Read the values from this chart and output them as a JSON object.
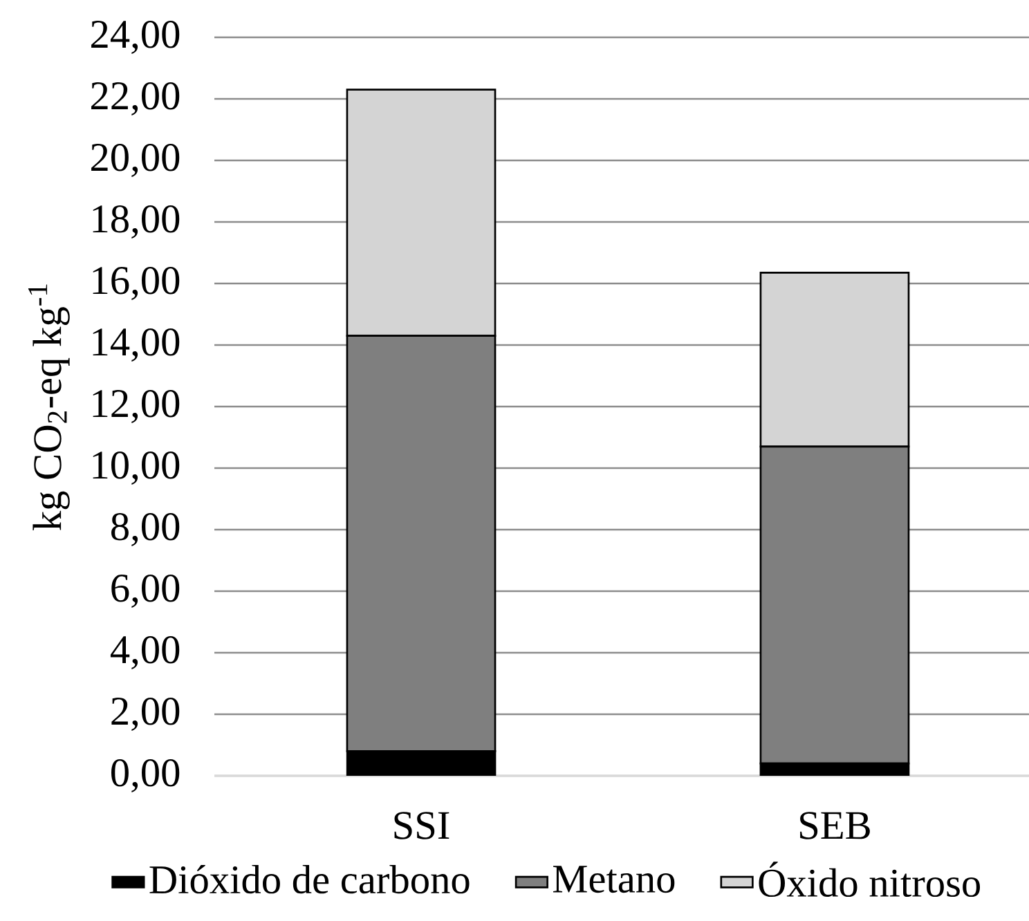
{
  "chart_data": {
    "type": "bar",
    "ylabel": "kg CO$_{2}$-eq kg$^{-1}$",
    "categories": [
      "SSI",
      "SEB"
    ],
    "series": [
      {
        "name": "Dióxido de carbono",
        "color": "#000000",
        "values": [
          0.8,
          0.4
        ]
      },
      {
        "name": "Metano",
        "color": "#7f7f7f",
        "values": [
          13.5,
          10.3
        ]
      },
      {
        "name": "Óxido nitroso",
        "color": "#d4d4d4",
        "values": [
          8.0,
          5.65
        ]
      }
    ],
    "stacked": true,
    "ylim": [
      0,
      24
    ],
    "yticks": [
      {
        "value": 0,
        "label": "0,00"
      },
      {
        "value": 2,
        "label": "2,00"
      },
      {
        "value": 4,
        "label": "4,00"
      },
      {
        "value": 6,
        "label": "6,00"
      },
      {
        "value": 8,
        "label": "8,00"
      },
      {
        "value": 10,
        "label": "10,00"
      },
      {
        "value": 12,
        "label": "12,00"
      },
      {
        "value": 14,
        "label": "14,00"
      },
      {
        "value": 16,
        "label": "16,00"
      },
      {
        "value": 18,
        "label": "18,00"
      },
      {
        "value": 20,
        "label": "20,00"
      },
      {
        "value": 22,
        "label": "22,00"
      },
      {
        "value": 24,
        "label": "24,00"
      }
    ],
    "grid": "y",
    "legend": "bottom"
  }
}
